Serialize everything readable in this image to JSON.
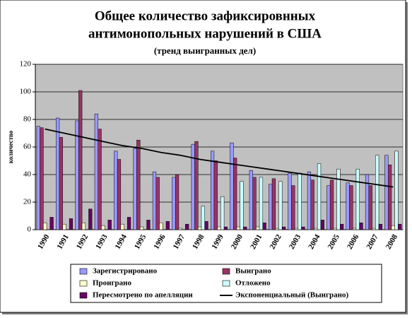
{
  "chart_data": {
    "type": "bar",
    "title": "Общее количество зафиксировнных",
    "title_line2": "антимонопольных нарушений в США",
    "subtitle": "(тренд выигранных дел)",
    "y_label": "количество",
    "categories": [
      "1990",
      "1991",
      "1992",
      "1993",
      "1994",
      "1995",
      "1996",
      "1997",
      "1998",
      "1999",
      "2000",
      "2001",
      "2002",
      "2003",
      "2004",
      "2005",
      "2006",
      "2007",
      "2008"
    ],
    "series": [
      {
        "name": "Зарегистрировано",
        "color": "#9999ff",
        "values": [
          75,
          81,
          79,
          84,
          57,
          59,
          42,
          38,
          62,
          57,
          63,
          43,
          33,
          41,
          42,
          32,
          34,
          40,
          54
        ]
      },
      {
        "name": "Выиграно",
        "color": "#993366",
        "values": [
          74,
          67,
          101,
          73,
          51,
          65,
          38,
          40,
          64,
          50,
          52,
          38,
          37,
          32,
          36,
          36,
          32,
          32,
          47
        ]
      },
      {
        "name": "Проиграно",
        "color": "#ffffcc",
        "values": [
          5,
          4,
          5,
          3,
          4,
          2,
          5,
          1,
          2,
          2,
          2,
          2,
          1,
          1,
          1,
          1,
          1,
          1,
          3
        ]
      },
      {
        "name": "Отложено",
        "color": "#ccffff",
        "values": [
          0,
          0,
          0,
          0,
          0,
          0,
          0,
          0,
          17,
          24,
          35,
          38,
          35,
          41,
          48,
          44,
          44,
          54,
          57
        ]
      },
      {
        "name": "Пересмотрено по апелляции",
        "color": "#660066",
        "values": [
          9,
          8,
          15,
          7,
          9,
          7,
          6,
          4,
          6,
          2,
          2,
          5,
          2,
          2,
          7,
          4,
          5,
          4,
          4
        ]
      },
      {
        "name": "Экспоненциальный (Выиграно)",
        "color": "#000000",
        "type": "line",
        "values": [
          73,
          70,
          67,
          64,
          61,
          59,
          56,
          54,
          51,
          49,
          47,
          45,
          43,
          41,
          39,
          37,
          35,
          33,
          31
        ]
      }
    ],
    "ylim": [
      0,
      120
    ],
    "yticks": [
      0,
      20,
      40,
      60,
      80,
      100,
      120
    ],
    "grid": true
  }
}
